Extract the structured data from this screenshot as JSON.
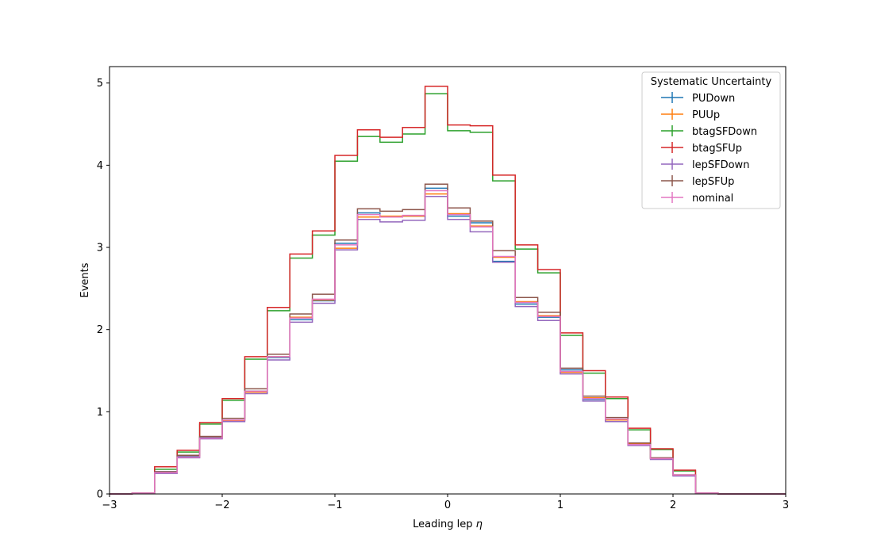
{
  "chart_data": {
    "type": "line",
    "title": "",
    "xlabel": "Leading lep",
    "xlabel_symbol": "η",
    "ylabel": "Events",
    "xlim": [
      -3,
      3
    ],
    "ylim": [
      0,
      5.2
    ],
    "x_ticks": [
      -3,
      -2,
      -1,
      0,
      1,
      2,
      3
    ],
    "x_tick_labels": [
      "−3",
      "−2",
      "−1",
      "0",
      "1",
      "2",
      "3"
    ],
    "y_ticks": [
      0,
      1,
      2,
      3,
      4,
      5
    ],
    "y_tick_labels": [
      "0",
      "1",
      "2",
      "3",
      "4",
      "5"
    ],
    "grid": false,
    "legend_placement": "top-right",
    "legend_title": "Systematic Uncertainty",
    "bin_edges": [
      -3.0,
      -2.8,
      -2.6,
      -2.4,
      -2.2,
      -2.0,
      -1.8,
      -1.6,
      -1.4,
      -1.2,
      -1.0,
      -0.8,
      -0.6,
      -0.4,
      -0.2,
      0.0,
      0.2,
      0.4,
      0.6,
      0.8,
      1.0,
      1.2,
      1.4,
      1.6,
      1.8,
      2.0,
      2.2,
      2.4,
      2.6,
      2.8,
      3.0
    ],
    "series": [
      {
        "name": "PUDown",
        "color": "#1f77b4",
        "values": [
          0,
          0.01,
          0.27,
          0.46,
          0.69,
          0.9,
          1.25,
          1.66,
          2.12,
          2.35,
          3.05,
          3.42,
          3.37,
          3.38,
          3.72,
          3.38,
          3.3,
          2.83,
          2.31,
          2.15,
          1.51,
          1.15,
          0.9,
          0.6,
          0.43,
          0.23,
          0.01,
          0,
          0,
          0
        ]
      },
      {
        "name": "PUUp",
        "color": "#ff7f0e",
        "values": [
          0,
          0.01,
          0.26,
          0.45,
          0.68,
          0.89,
          1.24,
          1.67,
          2.15,
          2.36,
          2.99,
          3.37,
          3.38,
          3.38,
          3.65,
          3.41,
          3.26,
          2.88,
          2.34,
          2.17,
          1.48,
          1.17,
          0.9,
          0.61,
          0.43,
          0.23,
          0.01,
          0,
          0,
          0
        ]
      },
      {
        "name": "btagSFDown",
        "color": "#2ca02c",
        "values": [
          0,
          0.01,
          0.3,
          0.51,
          0.85,
          1.14,
          1.64,
          2.23,
          2.87,
          3.15,
          4.05,
          4.35,
          4.28,
          4.38,
          4.87,
          4.42,
          4.4,
          3.81,
          2.98,
          2.69,
          1.93,
          1.47,
          1.16,
          0.78,
          0.54,
          0.28,
          0.01,
          0,
          0,
          0
        ]
      },
      {
        "name": "btagSFUp",
        "color": "#d62728",
        "values": [
          0,
          0.01,
          0.33,
          0.53,
          0.87,
          1.16,
          1.67,
          2.27,
          2.92,
          3.2,
          4.12,
          4.43,
          4.34,
          4.46,
          4.96,
          4.49,
          4.48,
          3.88,
          3.03,
          2.73,
          1.96,
          1.5,
          1.18,
          0.8,
          0.55,
          0.29,
          0.01,
          0,
          0,
          0
        ]
      },
      {
        "name": "lepSFDown",
        "color": "#9467bd",
        "values": [
          0,
          0.01,
          0.25,
          0.44,
          0.67,
          0.88,
          1.22,
          1.63,
          2.09,
          2.32,
          2.97,
          3.34,
          3.31,
          3.33,
          3.62,
          3.34,
          3.19,
          2.82,
          2.28,
          2.11,
          1.46,
          1.13,
          0.88,
          0.59,
          0.42,
          0.22,
          0.01,
          0,
          0,
          0
        ]
      },
      {
        "name": "lepSFUp",
        "color": "#8c564b",
        "values": [
          0,
          0.01,
          0.27,
          0.47,
          0.7,
          0.92,
          1.28,
          1.7,
          2.19,
          2.43,
          3.09,
          3.47,
          3.44,
          3.46,
          3.77,
          3.48,
          3.32,
          2.96,
          2.39,
          2.21,
          1.53,
          1.19,
          0.93,
          0.62,
          0.44,
          0.23,
          0.01,
          0,
          0,
          0
        ]
      },
      {
        "name": "nominal",
        "color": "#e377c2",
        "values": [
          0,
          0.01,
          0.26,
          0.45,
          0.68,
          0.9,
          1.25,
          1.67,
          2.14,
          2.37,
          3.03,
          3.4,
          3.37,
          3.39,
          3.69,
          3.4,
          3.25,
          2.89,
          2.33,
          2.16,
          1.49,
          1.16,
          0.91,
          0.6,
          0.43,
          0.23,
          0.01,
          0,
          0,
          0
        ]
      }
    ]
  }
}
